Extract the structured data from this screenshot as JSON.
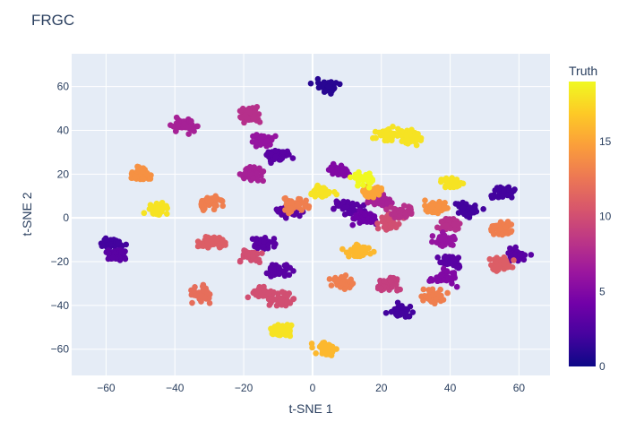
{
  "chart_data": {
    "type": "scatter",
    "title": "FRGC",
    "xlabel": "t-SNE 1",
    "ylabel": "t-SNE 2",
    "xlim": [
      -70,
      69
    ],
    "ylim": [
      -72,
      75
    ],
    "x_ticks": [
      -60,
      -40,
      -20,
      0,
      20,
      40,
      60
    ],
    "y_ticks": [
      -60,
      -40,
      -20,
      0,
      20,
      40,
      60
    ],
    "colorbar": {
      "title": "Truth",
      "range": [
        0,
        19
      ],
      "ticks": [
        0,
        5,
        10,
        15
      ]
    },
    "colorscale": "plasma",
    "grid": true,
    "clusters": [
      {
        "x": 4,
        "y": 60,
        "label": 1
      },
      {
        "x": 28,
        "y": 37,
        "label": 18
      },
      {
        "x": 22,
        "y": 38,
        "label": 18
      },
      {
        "x": -18,
        "y": 47,
        "label": 8
      },
      {
        "x": -37,
        "y": 42,
        "label": 7
      },
      {
        "x": -50,
        "y": 20,
        "label": 14
      },
      {
        "x": -18,
        "y": 20,
        "label": 7
      },
      {
        "x": -15,
        "y": 35,
        "label": 6
      },
      {
        "x": -10,
        "y": 28,
        "label": 3
      },
      {
        "x": -45,
        "y": 4,
        "label": 18
      },
      {
        "x": -30,
        "y": 7,
        "label": 13
      },
      {
        "x": -29,
        "y": -11,
        "label": 11
      },
      {
        "x": -58,
        "y": -12,
        "label": 2
      },
      {
        "x": -57,
        "y": -17,
        "label": 3
      },
      {
        "x": -14,
        "y": -12,
        "label": 3
      },
      {
        "x": -10,
        "y": -24,
        "label": 3
      },
      {
        "x": -18,
        "y": -17,
        "label": 10
      },
      {
        "x": -32,
        "y": -35,
        "label": 12
      },
      {
        "x": -15,
        "y": -34,
        "label": 10
      },
      {
        "x": -9,
        "y": -37,
        "label": 10
      },
      {
        "x": -9,
        "y": -51,
        "label": 18
      },
      {
        "x": 4,
        "y": -60,
        "label": 16
      },
      {
        "x": 8,
        "y": -30,
        "label": 13
      },
      {
        "x": 13,
        "y": -15,
        "label": 16
      },
      {
        "x": 26,
        "y": -43,
        "label": 2
      },
      {
        "x": 22,
        "y": -30,
        "label": 9
      },
      {
        "x": 40,
        "y": 16,
        "label": 18
      },
      {
        "x": 36,
        "y": 5,
        "label": 14
      },
      {
        "x": 45,
        "y": 4,
        "label": 2
      },
      {
        "x": 40,
        "y": -3,
        "label": 8
      },
      {
        "x": 55,
        "y": 12,
        "label": 2
      },
      {
        "x": 55,
        "y": -5,
        "label": 13
      },
      {
        "x": 59,
        "y": -17,
        "label": 3
      },
      {
        "x": 55,
        "y": -21,
        "label": 11
      },
      {
        "x": 38,
        "y": -10,
        "label": 6
      },
      {
        "x": 40,
        "y": -20,
        "label": 3
      },
      {
        "x": 38,
        "y": -27,
        "label": 5
      },
      {
        "x": 35,
        "y": -36,
        "label": 13
      },
      {
        "x": 10,
        "y": 5,
        "label": 3
      },
      {
        "x": 15,
        "y": 0,
        "label": 4
      },
      {
        "x": 20,
        "y": 8,
        "label": 7
      },
      {
        "x": 22,
        "y": -2,
        "label": 10
      },
      {
        "x": 26,
        "y": 3,
        "label": 8
      },
      {
        "x": 3,
        "y": 12,
        "label": 18
      },
      {
        "x": 17,
        "y": 12,
        "label": 15
      },
      {
        "x": -7,
        "y": 3,
        "label": 3
      },
      {
        "x": -5,
        "y": 6,
        "label": 13
      },
      {
        "x": 8,
        "y": 22,
        "label": 5
      },
      {
        "x": 15,
        "y": 18,
        "label": 19
      }
    ]
  }
}
